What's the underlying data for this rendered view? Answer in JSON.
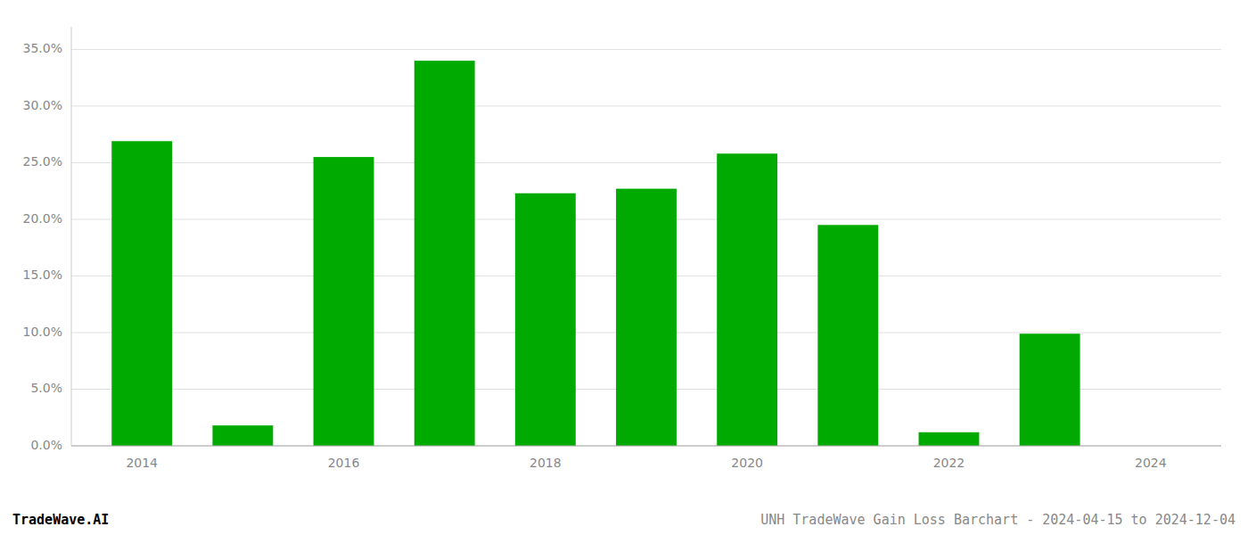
{
  "chart_data": {
    "type": "bar",
    "title": "UNH TradeWave Gain Loss Barchart - 2024-04-15 to 2024-12-04",
    "annotations": [
      "TradeWave.AI"
    ],
    "x": [
      2014,
      2015,
      2016,
      2017,
      2018,
      2019,
      2020,
      2021,
      2022,
      2023,
      2024
    ],
    "values": [
      0.269,
      0.018,
      0.255,
      0.34,
      0.223,
      0.227,
      0.258,
      0.195,
      0.012,
      0.099,
      0.0
    ],
    "color": "#00AA00",
    "xlim": [
      2013.3,
      2024.7
    ],
    "xticks": [
      2014,
      2016,
      2018,
      2020,
      2022,
      2024
    ],
    "ylim": [
      0,
      0.37
    ],
    "yticks": [
      {
        "value": 0,
        "label": "0.0%"
      },
      {
        "value": 0.05,
        "label": "5.0%"
      },
      {
        "value": 0.1,
        "label": "10.0%"
      },
      {
        "value": 0.15,
        "label": "15.0%"
      },
      {
        "value": 0.2,
        "label": "20.0%"
      },
      {
        "value": 0.25,
        "label": "25.0%"
      },
      {
        "value": 0.3,
        "label": "30.0%"
      },
      {
        "value": 0.35,
        "label": "35.0%"
      }
    ],
    "grid": true
  }
}
